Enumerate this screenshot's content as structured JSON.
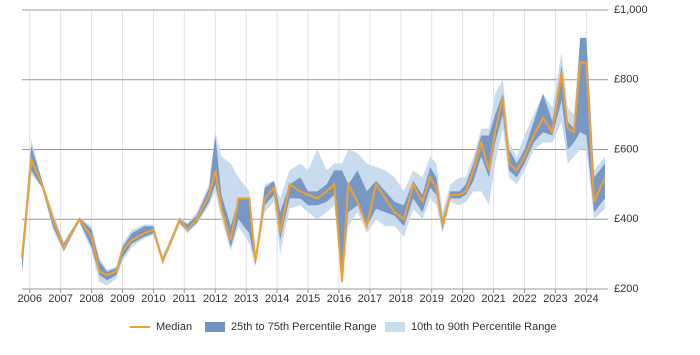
{
  "chart_data": {
    "type": "range-line",
    "x": [
      2005.75,
      2006.05,
      2006.4,
      2006.75,
      2007.1,
      2007.6,
      2008.0,
      2008.25,
      2008.5,
      2008.8,
      2009.0,
      2009.3,
      2009.7,
      2010.0,
      2010.3,
      2010.85,
      2011.1,
      2011.4,
      2011.8,
      2012.0,
      2012.2,
      2012.5,
      2012.75,
      2013.1,
      2013.3,
      2013.6,
      2013.9,
      2014.1,
      2014.4,
      2014.75,
      2015.0,
      2015.3,
      2015.6,
      2015.85,
      2016.1,
      2016.3,
      2016.6,
      2016.9,
      2017.2,
      2017.5,
      2017.8,
      2018.1,
      2018.4,
      2018.7,
      2018.95,
      2019.15,
      2019.35,
      2019.6,
      2019.9,
      2020.1,
      2020.35,
      2020.6,
      2020.85,
      2021.05,
      2021.3,
      2021.5,
      2021.75,
      2022.0,
      2022.3,
      2022.6,
      2022.9,
      2023.2,
      2023.4,
      2023.6,
      2023.8,
      2024.0,
      2024.25,
      2024.6
    ],
    "series": [
      {
        "name": "Median",
        "color": "#f0a030",
        "values": [
          290,
          570,
          500,
          400,
          320,
          400,
          350,
          250,
          240,
          250,
          310,
          340,
          360,
          370,
          280,
          400,
          370,
          400,
          470,
          540,
          430,
          340,
          460,
          460,
          280,
          460,
          490,
          360,
          500,
          480,
          470,
          460,
          480,
          500,
          220,
          500,
          450,
          380,
          500,
          460,
          420,
          400,
          500,
          450,
          520,
          490,
          380,
          470,
          470,
          480,
          540,
          620,
          540,
          650,
          750,
          560,
          540,
          580,
          640,
          690,
          650,
          820,
          660,
          650,
          850,
          850,
          450,
          520
        ]
      },
      {
        "name": "25th to 75th Percentile Range",
        "color": "#7393c2",
        "low": [
          250,
          540,
          490,
          380,
          310,
          395,
          320,
          240,
          225,
          240,
          290,
          330,
          350,
          360,
          275,
          390,
          365,
          390,
          450,
          500,
          420,
          320,
          400,
          360,
          270,
          440,
          470,
          340,
          460,
          460,
          440,
          440,
          450,
          470,
          220,
          420,
          440,
          380,
          430,
          420,
          410,
          380,
          460,
          420,
          490,
          470,
          370,
          460,
          460,
          470,
          510,
          580,
          520,
          620,
          700,
          540,
          520,
          560,
          620,
          650,
          640,
          740,
          600,
          620,
          650,
          640,
          420,
          460
        ],
        "high": [
          300,
          610,
          510,
          410,
          330,
          405,
          370,
          280,
          250,
          260,
          320,
          360,
          380,
          380,
          290,
          400,
          385,
          410,
          490,
          640,
          470,
          380,
          460,
          460,
          290,
          490,
          510,
          420,
          500,
          520,
          480,
          480,
          500,
          540,
          540,
          500,
          540,
          480,
          510,
          480,
          450,
          440,
          510,
          470,
          550,
          520,
          400,
          480,
          480,
          500,
          560,
          640,
          640,
          700,
          760,
          600,
          560,
          600,
          680,
          760,
          680,
          840,
          680,
          660,
          920,
          920,
          520,
          560
        ]
      },
      {
        "name": "10th to 90th Percentile Range",
        "color": "#c9dbef",
        "low": [
          240,
          530,
          490,
          370,
          305,
          390,
          310,
          220,
          210,
          230,
          280,
          320,
          345,
          355,
          270,
          385,
          360,
          385,
          440,
          480,
          400,
          310,
          380,
          330,
          265,
          420,
          450,
          300,
          430,
          440,
          420,
          400,
          420,
          440,
          210,
          380,
          420,
          360,
          400,
          380,
          380,
          350,
          430,
          400,
          460,
          440,
          360,
          450,
          440,
          450,
          480,
          480,
          440,
          560,
          660,
          520,
          500,
          540,
          600,
          620,
          620,
          680,
          560,
          580,
          600,
          600,
          400,
          430
        ],
        "high": [
          310,
          630,
          510,
          420,
          335,
          405,
          380,
          290,
          255,
          265,
          330,
          370,
          385,
          385,
          295,
          405,
          390,
          420,
          500,
          650,
          580,
          560,
          520,
          480,
          295,
          500,
          510,
          460,
          540,
          560,
          540,
          600,
          540,
          560,
          560,
          600,
          590,
          560,
          550,
          540,
          520,
          480,
          540,
          520,
          580,
          560,
          420,
          500,
          520,
          520,
          580,
          660,
          660,
          760,
          800,
          620,
          580,
          640,
          700,
          760,
          720,
          880,
          720,
          700,
          920,
          920,
          540,
          580
        ]
      }
    ],
    "xlim": [
      2005.75,
      2024.7
    ],
    "xticks": [
      2006,
      2007,
      2008,
      2009,
      2010,
      2011,
      2012,
      2013,
      2014,
      2015,
      2016,
      2017,
      2018,
      2019,
      2020,
      2021,
      2022,
      2023,
      2024
    ],
    "ylim": [
      200,
      1000
    ],
    "yticks": [
      {
        "value": 200,
        "label": "£200"
      },
      {
        "value": 400,
        "label": "£400"
      },
      {
        "value": 600,
        "label": "£600"
      },
      {
        "value": 800,
        "label": "£800"
      },
      {
        "value": 1000,
        "label": "£1,000"
      }
    ],
    "grid": true,
    "legend": "bottom"
  }
}
